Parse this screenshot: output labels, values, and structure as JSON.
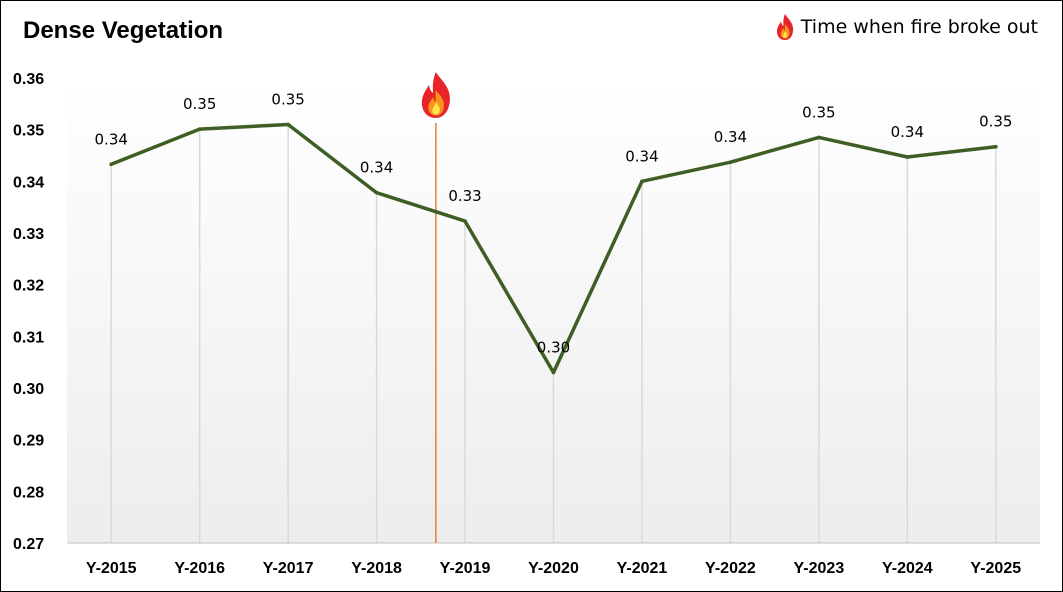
{
  "title": "Dense Vegetation",
  "legend": {
    "label": "Time when fire broke out",
    "icon": "fire-icon"
  },
  "colors": {
    "line": "#3F5E24",
    "marker_line": "#ED7D31",
    "gridline": "#D9D9D9",
    "axis": "#BFBFBF",
    "background_top": "#FFFFFF",
    "background_bottom": "#EDEDED"
  },
  "chart_data": {
    "type": "line",
    "title": "Dense Vegetation",
    "categories": [
      "Y-2015",
      "Y-2016",
      "Y-2017",
      "Y-2018",
      "Y-2019",
      "Y-2020",
      "Y-2021",
      "Y-2022",
      "Y-2023",
      "Y-2024",
      "Y-2025"
    ],
    "series": [
      {
        "values": [
          0.3433,
          0.3501,
          0.351,
          0.3378,
          0.3323,
          0.303,
          0.34,
          0.3437,
          0.3485,
          0.3447,
          0.3467
        ],
        "data_labels": [
          "0.34",
          "0.35",
          "0.35",
          "0.34",
          "0.33",
          "0.30",
          "0.34",
          "0.34",
          "0.35",
          "0.34",
          "0.35"
        ]
      }
    ],
    "ylim": [
      0.27,
      0.36
    ],
    "yticks": [
      "0.27",
      "0.28",
      "0.29",
      "0.30",
      "0.31",
      "0.32",
      "0.33",
      "0.34",
      "0.35",
      "0.36"
    ],
    "ytick_values": [
      0.27,
      0.28,
      0.29,
      0.3,
      0.31,
      0.32,
      0.33,
      0.34,
      0.35,
      0.36
    ],
    "vertical_gridlines": true,
    "legend_position": "top-right",
    "event_marker": {
      "label": "Time when fire broke out",
      "between_categories": [
        "Y-2018",
        "Y-2019"
      ],
      "position_fraction": 0.67
    }
  }
}
